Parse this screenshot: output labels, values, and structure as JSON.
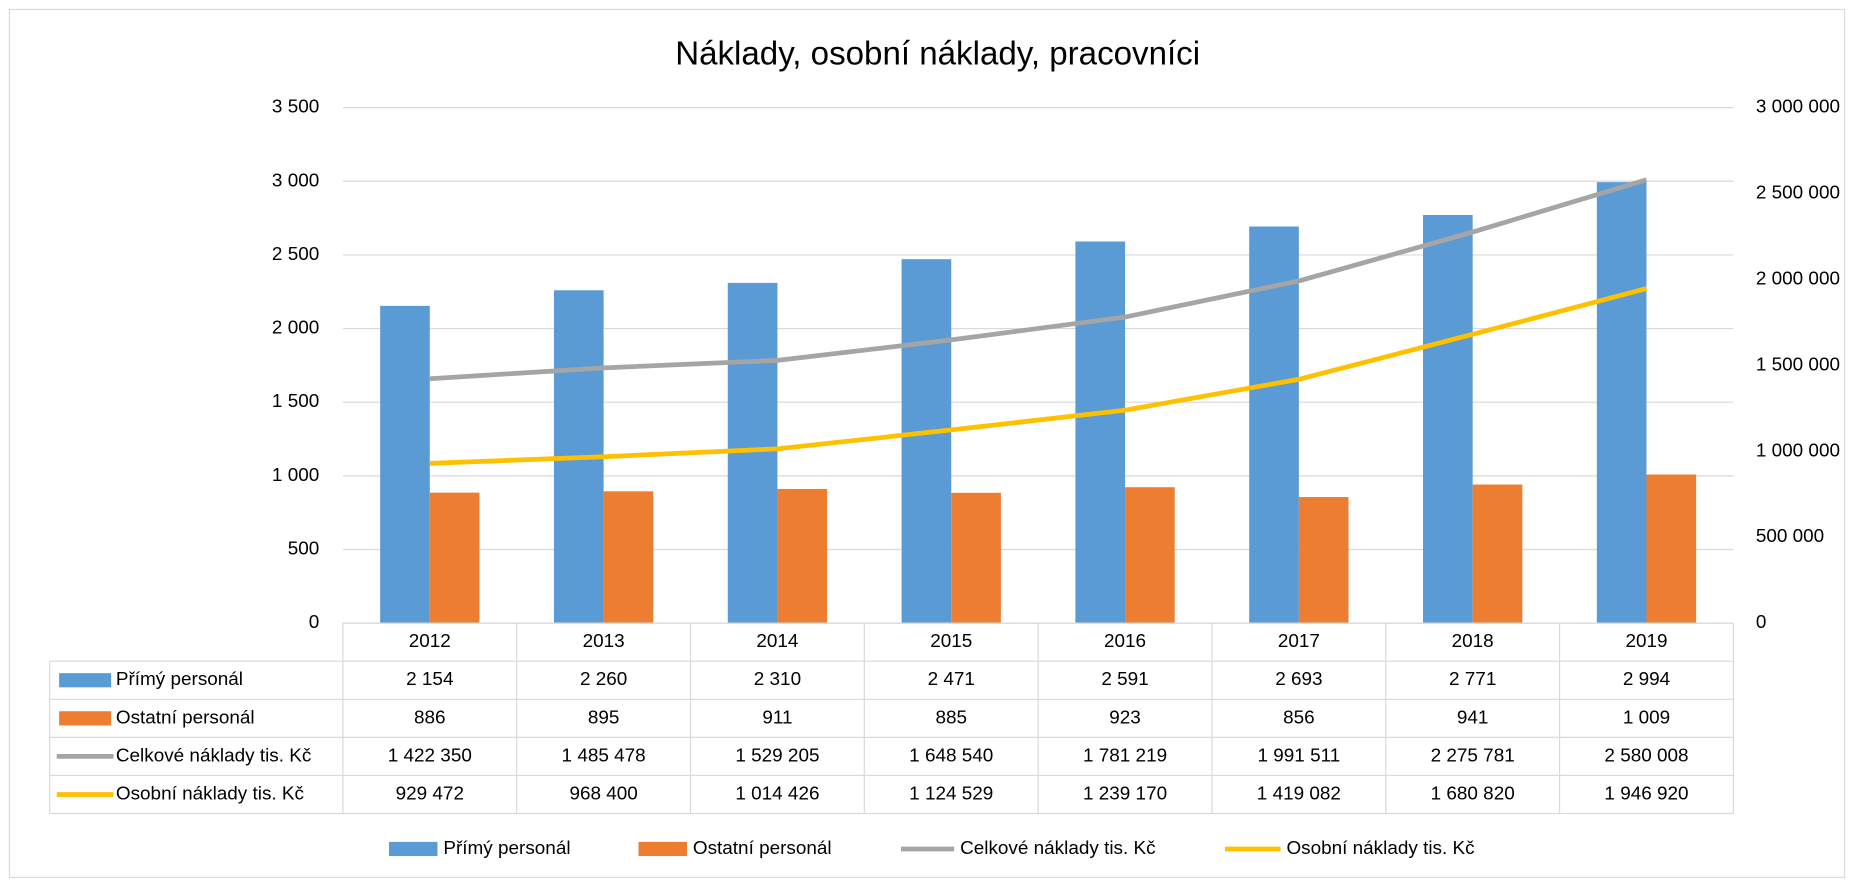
{
  "chart_data": {
    "type": "bar",
    "title": "Náklady, osobní náklady, pracovníci",
    "categories": [
      "2012",
      "2013",
      "2014",
      "2015",
      "2016",
      "2017",
      "2018",
      "2019"
    ],
    "series": [
      {
        "name": "Přímý personál",
        "type": "bar",
        "color": "#5b9bd5",
        "values": [
          2154,
          2260,
          2310,
          2471,
          2591,
          2693,
          2771,
          2994
        ],
        "value_labels": [
          "2 154",
          "2 260",
          "2 310",
          "2 471",
          "2 591",
          "2 693",
          "2 771",
          "2 994"
        ]
      },
      {
        "name": "Ostatní personál",
        "type": "bar",
        "color": "#ed7d31",
        "values": [
          886,
          895,
          911,
          885,
          923,
          856,
          941,
          1009
        ],
        "value_labels": [
          "886",
          "895",
          "911",
          "885",
          "923",
          "856",
          "941",
          "1 009"
        ]
      },
      {
        "name": "Celkové náklady tis. Kč",
        "type": "line",
        "axis": "y2",
        "color": "#a5a5a5",
        "values": [
          1422350,
          1485478,
          1529205,
          1648540,
          1781219,
          1991511,
          2275781,
          2580008
        ],
        "value_labels": [
          "1 422 350",
          "1 485 478",
          "1 529 205",
          "1 648 540",
          "1 781 219",
          "1 991 511",
          "2 275 781",
          "2 580 008"
        ]
      },
      {
        "name": "Osobní náklady tis. Kč",
        "type": "line",
        "axis": "y2",
        "color": "#ffc000",
        "values": [
          929472,
          968400,
          1014426,
          1124529,
          1239170,
          1419082,
          1680820,
          1946920
        ],
        "value_labels": [
          "929 472",
          "968 400",
          "1 014 426",
          "1 124 529",
          "1 239 170",
          "1 419 082",
          "1 680 820",
          "1 946 920"
        ]
      }
    ],
    "ylim": [
      0,
      3500
    ],
    "yticks": [
      0,
      500,
      {
        "value": 1000,
        "label": "1 000"
      },
      {
        "value": 1500,
        "label": "1 500"
      },
      {
        "value": 2000,
        "label": "2 000"
      },
      {
        "value": 2500,
        "label": "2 500"
      },
      {
        "value": 3000,
        "label": "3 000"
      },
      {
        "value": 3500,
        "label": "3 500"
      }
    ],
    "y2lim": [
      0,
      3000000
    ],
    "y2ticks": [
      0,
      {
        "value": 500000,
        "label": "500 000"
      },
      {
        "value": 1000000,
        "label": "1 000 000"
      },
      {
        "value": 1500000,
        "label": "1 500 000"
      },
      {
        "value": 2000000,
        "label": "2 000 000"
      },
      {
        "value": 2500000,
        "label": "2 500 000"
      },
      {
        "value": 3000000,
        "label": "3 000 000"
      }
    ],
    "grid": true,
    "legend": "bottom",
    "data_table": true
  }
}
